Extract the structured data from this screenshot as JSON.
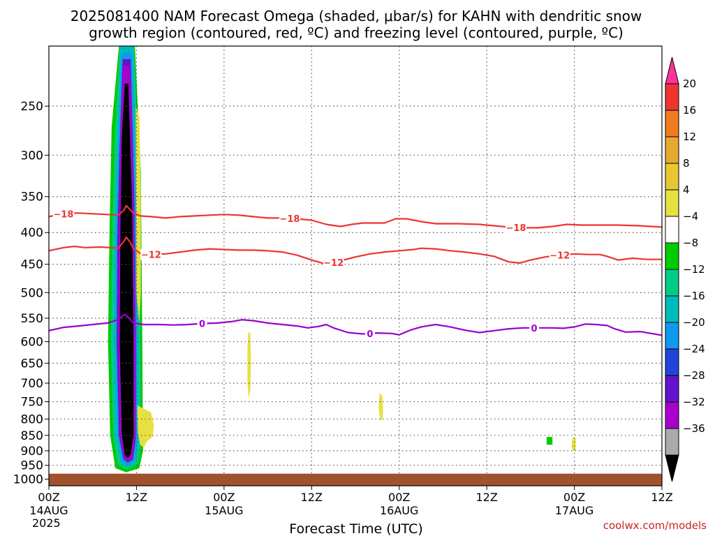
{
  "title_line1": "2025081400 NAM Forecast Omega (shaded, μbar/s) for KAHN with dendritic snow",
  "title_line2": "growth region (contoured, red, ºC) and freezing level (contoured, purple, ºC)",
  "credit": "coolwx.com/models",
  "chart_data": {
    "type": "heatmap",
    "xlabel": "Forecast Time (UTC)",
    "x_range_hours": [
      0,
      84
    ],
    "x_ticks": [
      {
        "hour": 0,
        "label": "00Z",
        "sub": "14AUG",
        "sub2": "2025"
      },
      {
        "hour": 12,
        "label": "12Z"
      },
      {
        "hour": 24,
        "label": "00Z",
        "sub": "15AUG"
      },
      {
        "hour": 36,
        "label": "12Z"
      },
      {
        "hour": 48,
        "label": "00Z",
        "sub": "16AUG"
      },
      {
        "hour": 60,
        "label": "12Z"
      },
      {
        "hour": 72,
        "label": "00Z",
        "sub": "17AUG"
      },
      {
        "hour": 84,
        "label": "12Z"
      }
    ],
    "y_ticks": [
      250,
      300,
      350,
      400,
      450,
      500,
      550,
      600,
      650,
      700,
      750,
      800,
      850,
      900,
      950,
      1000
    ],
    "y_scale": "log-pressure",
    "y_range_hPa": [
      200,
      1025
    ],
    "grid": true,
    "colorbar": {
      "labels": [
        "20",
        "16",
        "12",
        "8",
        "4",
        "−4",
        "−8",
        "−12",
        "−16",
        "−20",
        "−24",
        "−28",
        "−32",
        "−36"
      ],
      "colors": [
        "#ff3399",
        "#ee3333",
        "#f07a20",
        "#e8a830",
        "#e8c832",
        "#e8e040",
        "#ffffff",
        "#00cc00",
        "#00cc88",
        "#00bbbb",
        "#1199ee",
        "#2244dd",
        "#6611cc",
        "#aa00cc",
        "#aaaaaa",
        "#000000"
      ]
    },
    "ground_color": "#a0522d",
    "ground_top_hPa": 980,
    "contours": [
      {
        "value": "-18",
        "color": "#ee3333",
        "points": [
          [
            0,
            377
          ],
          [
            2,
            373
          ],
          [
            4,
            372
          ],
          [
            6,
            373
          ],
          [
            8,
            374
          ],
          [
            9.5,
            375
          ],
          [
            10.3,
            368
          ],
          [
            10.6,
            362
          ],
          [
            11.1,
            367
          ],
          [
            11.6,
            372
          ],
          [
            12.5,
            376
          ],
          [
            14,
            377
          ],
          [
            16,
            379
          ],
          [
            18,
            377
          ],
          [
            20,
            376
          ],
          [
            22,
            375
          ],
          [
            24,
            374
          ],
          [
            26,
            375
          ],
          [
            28,
            377
          ],
          [
            30,
            379
          ],
          [
            32,
            379
          ],
          [
            34,
            380
          ],
          [
            36,
            382
          ],
          [
            38,
            388
          ],
          [
            40,
            391
          ],
          [
            41.5,
            388
          ],
          [
            43,
            386
          ],
          [
            46,
            386
          ],
          [
            47.5,
            380
          ],
          [
            49,
            380
          ],
          [
            51,
            384
          ],
          [
            53,
            387
          ],
          [
            56,
            387
          ],
          [
            59,
            388
          ],
          [
            61,
            390
          ],
          [
            63,
            392
          ],
          [
            65,
            393
          ],
          [
            67,
            393
          ],
          [
            69,
            391
          ],
          [
            71,
            388
          ],
          [
            73,
            389
          ],
          [
            75,
            389
          ],
          [
            78,
            389
          ],
          [
            81,
            390
          ],
          [
            84,
            392
          ]
        ],
        "labels": [
          {
            "hour": 2,
            "text": "−18"
          },
          {
            "hour": 33,
            "text": "−18"
          },
          {
            "hour": 64,
            "text": "−18"
          }
        ]
      },
      {
        "value": "-12",
        "color": "#ee3333",
        "points": [
          [
            0,
            428
          ],
          [
            2,
            423
          ],
          [
            3.5,
            421
          ],
          [
            5,
            423
          ],
          [
            7,
            422
          ],
          [
            9.5,
            424
          ],
          [
            10.3,
            413
          ],
          [
            10.6,
            407
          ],
          [
            11.1,
            414
          ],
          [
            11.6,
            425
          ],
          [
            12.5,
            432
          ],
          [
            14,
            434
          ],
          [
            16,
            433
          ],
          [
            18,
            430
          ],
          [
            20,
            427
          ],
          [
            22,
            425
          ],
          [
            24,
            426
          ],
          [
            26,
            427
          ],
          [
            28,
            427
          ],
          [
            30,
            428
          ],
          [
            32,
            430
          ],
          [
            34,
            435
          ],
          [
            36,
            443
          ],
          [
            38,
            450
          ],
          [
            40,
            444
          ],
          [
            42,
            438
          ],
          [
            44,
            433
          ],
          [
            46,
            430
          ],
          [
            48,
            428
          ],
          [
            50,
            426
          ],
          [
            51,
            424
          ],
          [
            53,
            425
          ],
          [
            55,
            428
          ],
          [
            57,
            430
          ],
          [
            59,
            433
          ],
          [
            61,
            437
          ],
          [
            63,
            446
          ],
          [
            64.5,
            448
          ],
          [
            66,
            443
          ],
          [
            68,
            438
          ],
          [
            70,
            435
          ],
          [
            72,
            433
          ],
          [
            74,
            434
          ],
          [
            75.5,
            434
          ],
          [
            76.5,
            437
          ],
          [
            78,
            443
          ],
          [
            80,
            440
          ],
          [
            82,
            442
          ],
          [
            84,
            442
          ]
        ],
        "labels": [
          {
            "hour": 14,
            "text": "−12"
          },
          {
            "hour": 39,
            "text": "−12"
          },
          {
            "hour": 70,
            "text": "−12"
          }
        ]
      },
      {
        "value": "0",
        "color": "#9900cc",
        "points": [
          [
            0,
            576
          ],
          [
            2,
            569
          ],
          [
            4,
            566
          ],
          [
            6,
            563
          ],
          [
            8,
            560
          ],
          [
            9.5,
            553
          ],
          [
            10.4,
            542
          ],
          [
            11,
            550
          ],
          [
            11.6,
            560
          ],
          [
            13,
            563
          ],
          [
            15,
            563
          ],
          [
            17,
            564
          ],
          [
            19,
            563
          ],
          [
            21,
            561
          ],
          [
            23,
            560
          ],
          [
            25,
            557
          ],
          [
            26.5,
            553
          ],
          [
            28,
            555
          ],
          [
            30,
            560
          ],
          [
            32,
            563
          ],
          [
            34,
            566
          ],
          [
            35.5,
            570
          ],
          [
            37,
            567
          ],
          [
            38,
            563
          ],
          [
            39,
            570
          ],
          [
            41,
            580
          ],
          [
            43,
            583
          ],
          [
            45,
            581
          ],
          [
            47,
            582
          ],
          [
            48,
            585
          ],
          [
            49.5,
            575
          ],
          [
            51,
            568
          ],
          [
            53,
            563
          ],
          [
            55,
            568
          ],
          [
            57,
            575
          ],
          [
            59,
            580
          ],
          [
            61,
            576
          ],
          [
            63,
            572
          ],
          [
            65,
            570
          ],
          [
            67,
            570
          ],
          [
            69,
            570
          ],
          [
            70.5,
            571
          ],
          [
            72,
            568
          ],
          [
            73.5,
            562
          ],
          [
            75,
            563
          ],
          [
            76.5,
            565
          ],
          [
            77.5,
            572
          ],
          [
            79,
            579
          ],
          [
            81,
            578
          ],
          [
            84,
            586
          ]
        ],
        "labels": [
          {
            "hour": 21,
            "text": "0"
          },
          {
            "hour": 44,
            "text": "0"
          },
          {
            "hour": 66.5,
            "text": "0"
          }
        ]
      }
    ],
    "shaded_regions": [
      {
        "color": "#00cc00",
        "points": [
          [
            8.6,
            270
          ],
          [
            9.6,
            200
          ],
          [
            11.8,
            200
          ],
          [
            12.6,
            320
          ],
          [
            12.8,
            600
          ],
          [
            12.9,
            900
          ],
          [
            12.4,
            960
          ],
          [
            10.6,
            975
          ],
          [
            9.1,
            960
          ],
          [
            8.4,
            850
          ],
          [
            8.1,
            600
          ],
          [
            8.3,
            400
          ]
        ]
      },
      {
        "color": "#00cc88",
        "points": [
          [
            9.0,
            290
          ],
          [
            9.7,
            200
          ],
          [
            11.7,
            200
          ],
          [
            12.3,
            330
          ],
          [
            12.5,
            600
          ],
          [
            12.6,
            890
          ],
          [
            12.1,
            950
          ],
          [
            10.7,
            965
          ],
          [
            9.5,
            950
          ],
          [
            8.8,
            850
          ],
          [
            8.5,
            600
          ],
          [
            8.7,
            400
          ]
        ]
      },
      {
        "color": "#00bbbb",
        "points": [
          [
            9.3,
            300
          ],
          [
            9.8,
            200
          ],
          [
            11.6,
            200
          ],
          [
            12.1,
            340
          ],
          [
            12.3,
            600
          ],
          [
            12.3,
            880
          ],
          [
            11.9,
            940
          ],
          [
            10.8,
            955
          ],
          [
            9.8,
            940
          ],
          [
            9.1,
            850
          ],
          [
            8.8,
            600
          ],
          [
            9.0,
            400
          ]
        ]
      },
      {
        "color": "#1199ee",
        "points": [
          [
            9.5,
            300
          ],
          [
            9.9,
            205
          ],
          [
            11.4,
            205
          ],
          [
            11.9,
            350
          ],
          [
            12.1,
            600
          ],
          [
            12.1,
            870
          ],
          [
            11.7,
            935
          ],
          [
            10.8,
            948
          ],
          [
            10.0,
            935
          ],
          [
            9.4,
            850
          ],
          [
            9.1,
            600
          ],
          [
            9.2,
            400
          ]
        ]
      },
      {
        "color": "#6611cc",
        "points": [
          [
            9.7,
            290
          ],
          [
            10.1,
            210
          ],
          [
            11.2,
            210
          ],
          [
            11.7,
            350
          ],
          [
            11.9,
            600
          ],
          [
            11.9,
            860
          ],
          [
            11.5,
            930
          ],
          [
            10.8,
            940
          ],
          [
            10.2,
            928
          ],
          [
            9.6,
            850
          ],
          [
            9.3,
            600
          ],
          [
            9.4,
            400
          ]
        ]
      },
      {
        "color": "#aa00cc",
        "points": [
          [
            9.8,
            280
          ],
          [
            10.2,
            215
          ],
          [
            11.1,
            215
          ],
          [
            11.6,
            360
          ],
          [
            11.8,
            600
          ],
          [
            11.8,
            850
          ],
          [
            11.4,
            925
          ],
          [
            10.8,
            935
          ],
          [
            10.3,
            925
          ],
          [
            9.8,
            850
          ],
          [
            9.5,
            600
          ],
          [
            9.6,
            400
          ]
        ]
      },
      {
        "color": "#000000",
        "points": [
          [
            10.0,
            280
          ],
          [
            10.4,
            230
          ],
          [
            10.9,
            230
          ],
          [
            11.4,
            360
          ],
          [
            11.6,
            600
          ],
          [
            11.6,
            850
          ],
          [
            11.2,
            915
          ],
          [
            10.8,
            925
          ],
          [
            10.4,
            915
          ],
          [
            10.0,
            850
          ],
          [
            9.7,
            600
          ],
          [
            9.8,
            400
          ]
        ]
      },
      {
        "color": "#e8e040",
        "points": [
          [
            11.9,
            250
          ],
          [
            12.4,
            260
          ],
          [
            12.6,
            350
          ],
          [
            12.6,
            500
          ],
          [
            12.4,
            560
          ],
          [
            12.0,
            500
          ]
        ]
      },
      {
        "color": "#e8e040",
        "points": [
          [
            12.1,
            760
          ],
          [
            13.0,
            770
          ],
          [
            14.0,
            780
          ],
          [
            14.4,
            820
          ],
          [
            14.2,
            855
          ],
          [
            13.4,
            870
          ],
          [
            13.0,
            890
          ],
          [
            12.5,
            880
          ],
          [
            12.2,
            840
          ]
        ]
      },
      {
        "color": "#e8e040",
        "points": [
          [
            27.3,
            580
          ],
          [
            27.6,
            580
          ],
          [
            27.7,
            650
          ],
          [
            27.6,
            720
          ],
          [
            27.4,
            740
          ],
          [
            27.2,
            700
          ],
          [
            27.2,
            620
          ]
        ]
      },
      {
        "color": "#e8e040",
        "points": [
          [
            45.3,
            725
          ],
          [
            45.7,
            735
          ],
          [
            45.8,
            780
          ],
          [
            45.7,
            800
          ],
          [
            45.4,
            805
          ],
          [
            45.2,
            770
          ]
        ]
      },
      {
        "color": "#00cc00",
        "points": [
          [
            68.2,
            855
          ],
          [
            69.0,
            855
          ],
          [
            69.0,
            880
          ],
          [
            68.2,
            880
          ]
        ]
      },
      {
        "color": "#e8e040",
        "points": [
          [
            71.8,
            855
          ],
          [
            72.2,
            860
          ],
          [
            72.2,
            895
          ],
          [
            71.9,
            902
          ],
          [
            71.6,
            890
          ],
          [
            71.7,
            865
          ]
        ]
      }
    ]
  }
}
